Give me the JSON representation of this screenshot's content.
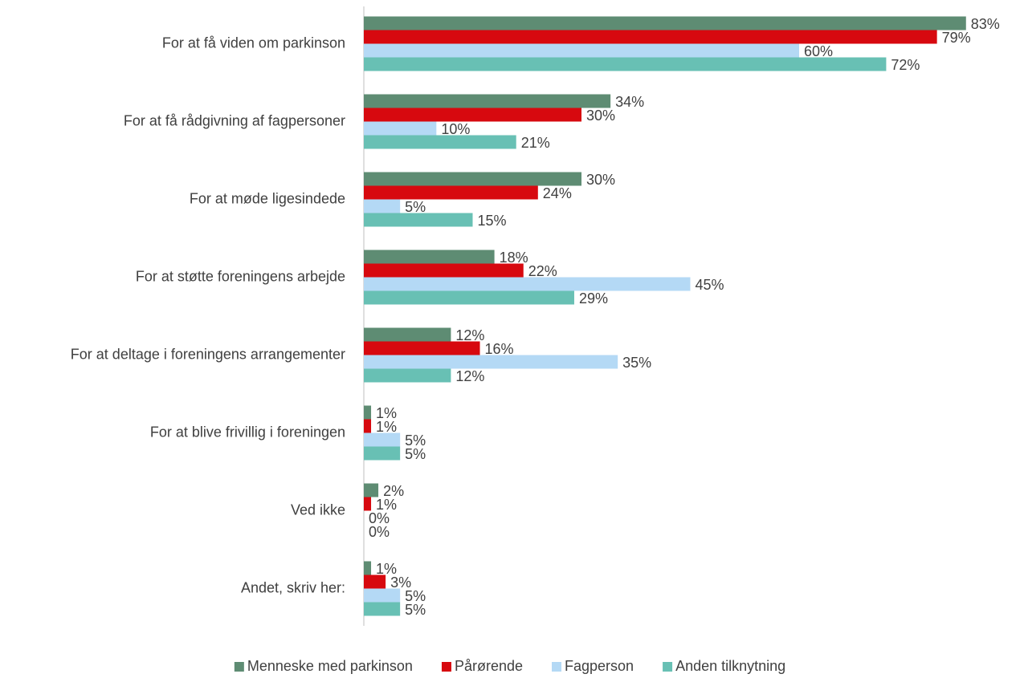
{
  "chart_data": {
    "type": "hbar",
    "categories": [
      "For at få viden om parkinson",
      "For at få rådgivning af fagpersoner",
      "For at møde ligesindede",
      "For at støtte foreningens arbejde",
      "For at deltage i foreningens arrangementer",
      "For at blive frivillig i foreningen",
      "Ved ikke",
      "Andet, skriv her:"
    ],
    "series": [
      {
        "name": "Menneske med parkinson",
        "color": "#5e8c73",
        "values": [
          83,
          34,
          30,
          18,
          12,
          1,
          2,
          1
        ],
        "value_labels": [
          "83%",
          "34%",
          "30%",
          "18%",
          "12%",
          "1%",
          "2%",
          "1%"
        ]
      },
      {
        "name": "Pårørende",
        "color": "#d7090f",
        "values": [
          79,
          30,
          24,
          22,
          16,
          1,
          1,
          3
        ],
        "value_labels": [
          "79%",
          "30%",
          "24%",
          "22%",
          "16%",
          "1%",
          "1%",
          "3%"
        ]
      },
      {
        "name": "Fagperson",
        "color": "#b4d9f5",
        "values": [
          60,
          10,
          5,
          45,
          35,
          5,
          0,
          5
        ],
        "value_labels": [
          "60%",
          "10%",
          "5%",
          "45%",
          "35%",
          "5%",
          "0%",
          "5%"
        ]
      },
      {
        "name": "Anden tilknytning",
        "color": "#68c0b4",
        "values": [
          72,
          21,
          15,
          29,
          12,
          5,
          0,
          5
        ],
        "value_labels": [
          "72%",
          "21%",
          "15%",
          "29%",
          "12%",
          "5%",
          "0%",
          "5%"
        ]
      }
    ],
    "xlim": [
      0,
      90
    ],
    "legend": "bottom"
  }
}
